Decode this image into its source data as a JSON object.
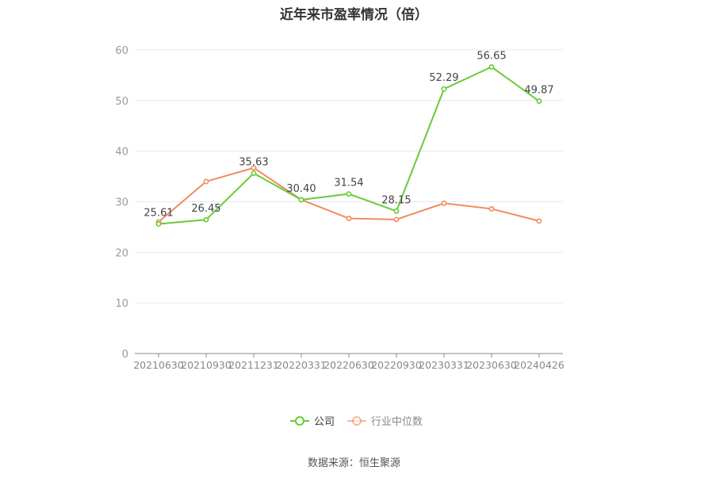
{
  "title": "近年来市盈率情况（倍）",
  "source": "数据来源：恒生聚源",
  "colors": {
    "company": "#66cc33",
    "industry": "#f08a5d",
    "grid": "#e6e9f5",
    "axis": "#888888",
    "tick_text": "#999999",
    "label_text": "#444444"
  },
  "chart_data": {
    "type": "line",
    "categories": [
      "20210630",
      "20210930",
      "20211231",
      "20220331",
      "20220630",
      "20220930",
      "20230331",
      "20230630",
      "20240426"
    ],
    "ylim": [
      0,
      60
    ],
    "yticks": [
      0,
      10,
      20,
      30,
      40,
      50,
      60
    ],
    "grid": true,
    "legend_position": "bottom-center",
    "series": [
      {
        "name": "公司",
        "color": "#66cc33",
        "values": [
          25.61,
          26.45,
          35.63,
          30.4,
          31.54,
          28.15,
          52.29,
          56.65,
          49.87
        ],
        "labels": [
          "25.61",
          "26.45",
          "35.63",
          "30.40",
          "31.54",
          "28.15",
          "52.29",
          "56.65",
          "49.87"
        ]
      },
      {
        "name": "行业中位数",
        "color": "#f08a5d",
        "values": [
          26.0,
          34.0,
          36.7,
          30.4,
          26.7,
          26.5,
          29.7,
          28.6,
          26.2
        ]
      }
    ]
  }
}
